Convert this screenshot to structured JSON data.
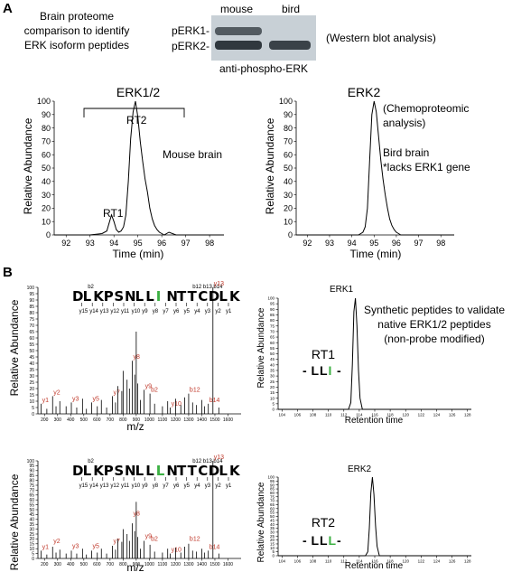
{
  "panel_a": {
    "label": "A",
    "intro_lines": [
      "Brain proteome",
      "comparison to identify",
      "ERK isoform peptides"
    ],
    "blot": {
      "lane_labels": [
        "mouse",
        "bird"
      ],
      "band_labels": [
        "pERK1-",
        "pERK2-"
      ],
      "antibody": "anti-phospho-ERK",
      "method": "(Western blot analysis)"
    }
  },
  "panel_b": {
    "label": "B",
    "validation_lines": [
      "Synthetic peptides to validate",
      "native ERK1/2 peptides",
      "(non-probe modified)"
    ],
    "ms1": {
      "sequence": "DLKPSNLLINTTCDLK",
      "rt_label": "RT1",
      "variant_label": "-LLI-",
      "ion_labels": [
        "y13",
        "y1",
        "y2",
        "y3",
        "y4",
        "y5",
        "y6",
        "y7",
        "y8",
        "y9",
        "y10",
        "y11",
        "y12",
        "b2",
        "b11",
        "b12",
        "b13",
        "b14"
      ]
    },
    "ms2": {
      "sequence": "DLKPSNLLLNTTCDLK",
      "rt_label": "RT2",
      "variant_label": "-LLL-",
      "ion_labels": [
        "y13",
        "y1",
        "y2",
        "y3",
        "y4",
        "y5",
        "y6",
        "y7",
        "y8",
        "y9",
        "y10",
        "y11",
        "y12",
        "b2",
        "b11",
        "b12",
        "b13",
        "b14"
      ]
    }
  },
  "chart_data": [
    {
      "type": "line",
      "title": "ERK1/2",
      "xlabel": "Time (min)",
      "ylabel": "Relative Abundance",
      "xlim": [
        91.5,
        98.6
      ],
      "ylim": [
        0,
        100
      ],
      "xticks": [
        92,
        93,
        94,
        95,
        96,
        97,
        98
      ],
      "yticks": [
        0,
        10,
        20,
        30,
        40,
        50,
        60,
        70,
        80,
        90,
        100
      ],
      "annotations": [
        "RT1",
        "RT2",
        "Mouse brain"
      ],
      "series": [
        {
          "x": [
            91.5,
            93.0,
            93.5,
            93.7,
            93.8,
            93.9,
            94.0,
            94.1,
            94.2,
            94.3,
            94.4,
            94.5,
            94.6,
            94.7,
            94.8,
            94.9,
            95.0,
            95.1,
            95.2,
            95.3,
            95.4,
            95.5,
            95.6,
            95.7,
            95.8,
            95.9,
            96.0,
            96.1,
            96.3,
            96.6,
            98.6
          ],
          "y": [
            0,
            0,
            1,
            3,
            9,
            15,
            10,
            4,
            2,
            3,
            6,
            15,
            40,
            72,
            92,
            100,
            88,
            70,
            55,
            42,
            32,
            20,
            12,
            7,
            4,
            2,
            1,
            0,
            2,
            0,
            0
          ]
        }
      ]
    },
    {
      "type": "line",
      "title": "ERK2",
      "xlabel": "Time (min)",
      "ylabel": "Relative Abundance",
      "xlim": [
        91.5,
        98.6
      ],
      "ylim": [
        0,
        100
      ],
      "xticks": [
        92,
        93,
        94,
        95,
        96,
        97,
        98
      ],
      "yticks": [
        0,
        10,
        20,
        30,
        40,
        50,
        60,
        70,
        80,
        90,
        100
      ],
      "annotations": [
        "(Chemoproteomic",
        "analysis)",
        "Bird brain",
        "*lacks ERK1 gene"
      ],
      "series": [
        {
          "x": [
            91.5,
            94.3,
            94.5,
            94.6,
            94.7,
            94.8,
            94.9,
            95.0,
            95.1,
            95.2,
            95.3,
            95.4,
            95.5,
            95.6,
            95.7,
            95.8,
            95.9,
            96.0,
            96.1,
            96.2,
            98.6
          ],
          "y": [
            0,
            0,
            2,
            6,
            20,
            55,
            90,
            100,
            92,
            74,
            56,
            42,
            30,
            20,
            12,
            7,
            4,
            2,
            1,
            0,
            0
          ]
        }
      ]
    },
    {
      "type": "bar",
      "title": "",
      "xlabel": "m/z",
      "ylabel": "Relative Abundance",
      "xlim": [
        150,
        1700
      ],
      "ylim": [
        0,
        100
      ],
      "xticks": [
        200,
        300,
        400,
        500,
        600,
        700,
        800,
        900,
        1000,
        1100,
        1200,
        1300,
        1400,
        1500,
        1600
      ],
      "yticks": [
        0,
        5,
        10,
        15,
        20,
        25,
        30,
        35,
        40,
        45,
        50,
        55,
        60,
        65,
        70,
        75,
        80,
        85,
        90,
        95,
        100
      ],
      "x": [
        175,
        218,
        262,
        288,
        317,
        365,
        405,
        446,
        490,
        520,
        560,
        603,
        634,
        674,
        718,
        742,
        760,
        790,
        800,
        830,
        848,
        870,
        888,
        900,
        912,
        932,
        960,
        1005,
        1040,
        1100,
        1140,
        1160,
        1200,
        1240,
        1270,
        1300,
        1330,
        1360,
        1400,
        1420,
        1450,
        1485,
        1530
      ],
      "values": [
        8,
        4,
        14,
        6,
        10,
        6,
        9,
        5,
        12,
        4,
        9,
        6,
        11,
        5,
        14,
        9,
        22,
        18,
        34,
        27,
        20,
        42,
        31,
        65,
        24,
        11,
        19,
        16,
        8,
        6,
        10,
        5,
        12,
        7,
        13,
        16,
        9,
        7,
        11,
        6,
        8,
        100,
        5
      ]
    },
    {
      "type": "line",
      "title": "ERK1",
      "xlabel": "Retention time",
      "ylabel": "Relative Abundance",
      "xlim": [
        103.5,
        128.5
      ],
      "ylim": [
        0,
        100
      ],
      "xticks": [
        104,
        106,
        108,
        110,
        112,
        114,
        116,
        118,
        120,
        122,
        124,
        126,
        128
      ],
      "yticks": [
        0,
        5,
        10,
        15,
        20,
        25,
        30,
        35,
        40,
        45,
        50,
        55,
        60,
        65,
        70,
        75,
        80,
        85,
        90,
        95,
        100
      ],
      "series": [
        {
          "x": [
            103.5,
            112.6,
            112.9,
            113.1,
            113.3,
            113.5,
            113.7,
            113.9,
            114.1,
            114.4,
            128.5
          ],
          "y": [
            0,
            0,
            6,
            40,
            88,
            100,
            75,
            35,
            10,
            0,
            0
          ]
        }
      ]
    },
    {
      "type": "bar",
      "title": "",
      "xlabel": "m/z",
      "ylabel": "Relative Abundance",
      "xlim": [
        150,
        1700
      ],
      "ylim": [
        0,
        100
      ],
      "xticks": [
        200,
        300,
        400,
        500,
        600,
        700,
        800,
        900,
        1000,
        1100,
        1200,
        1300,
        1400,
        1500,
        1600
      ],
      "yticks": [
        0,
        5,
        10,
        15,
        20,
        25,
        30,
        35,
        40,
        45,
        50,
        55,
        60,
        65,
        70,
        75,
        80,
        85,
        90,
        95,
        100
      ],
      "x": [
        175,
        218,
        262,
        288,
        317,
        365,
        405,
        446,
        490,
        520,
        560,
        603,
        634,
        674,
        718,
        742,
        760,
        790,
        800,
        830,
        848,
        870,
        888,
        900,
        912,
        932,
        960,
        1005,
        1040,
        1100,
        1140,
        1160,
        1200,
        1240,
        1270,
        1300,
        1330,
        1360,
        1400,
        1420,
        1450,
        1485,
        1530
      ],
      "values": [
        8,
        4,
        12,
        6,
        9,
        5,
        8,
        5,
        10,
        4,
        8,
        6,
        10,
        5,
        13,
        9,
        20,
        17,
        30,
        25,
        18,
        36,
        28,
        58,
        22,
        10,
        18,
        14,
        7,
        6,
        10,
        5,
        11,
        6,
        12,
        15,
        8,
        7,
        10,
        6,
        8,
        100,
        5
      ]
    },
    {
      "type": "line",
      "title": "ERK2",
      "xlabel": "Retention time",
      "ylabel": "Relative Abundance",
      "xlim": [
        103.5,
        128.5
      ],
      "ylim": [
        0,
        100
      ],
      "xticks": [
        104,
        106,
        108,
        110,
        112,
        114,
        116,
        118,
        120,
        122,
        124,
        126,
        128
      ],
      "yticks": [
        0,
        5,
        10,
        15,
        20,
        25,
        30,
        35,
        40,
        45,
        50,
        55,
        60,
        65,
        70,
        75,
        80,
        85,
        90,
        95,
        100
      ],
      "series": [
        {
          "x": [
            103.5,
            114.8,
            115.1,
            115.3,
            115.5,
            115.7,
            115.9,
            116.1,
            116.3,
            116.6,
            128.5
          ],
          "y": [
            0,
            0,
            5,
            35,
            80,
            100,
            78,
            38,
            12,
            0,
            0
          ]
        }
      ]
    }
  ]
}
